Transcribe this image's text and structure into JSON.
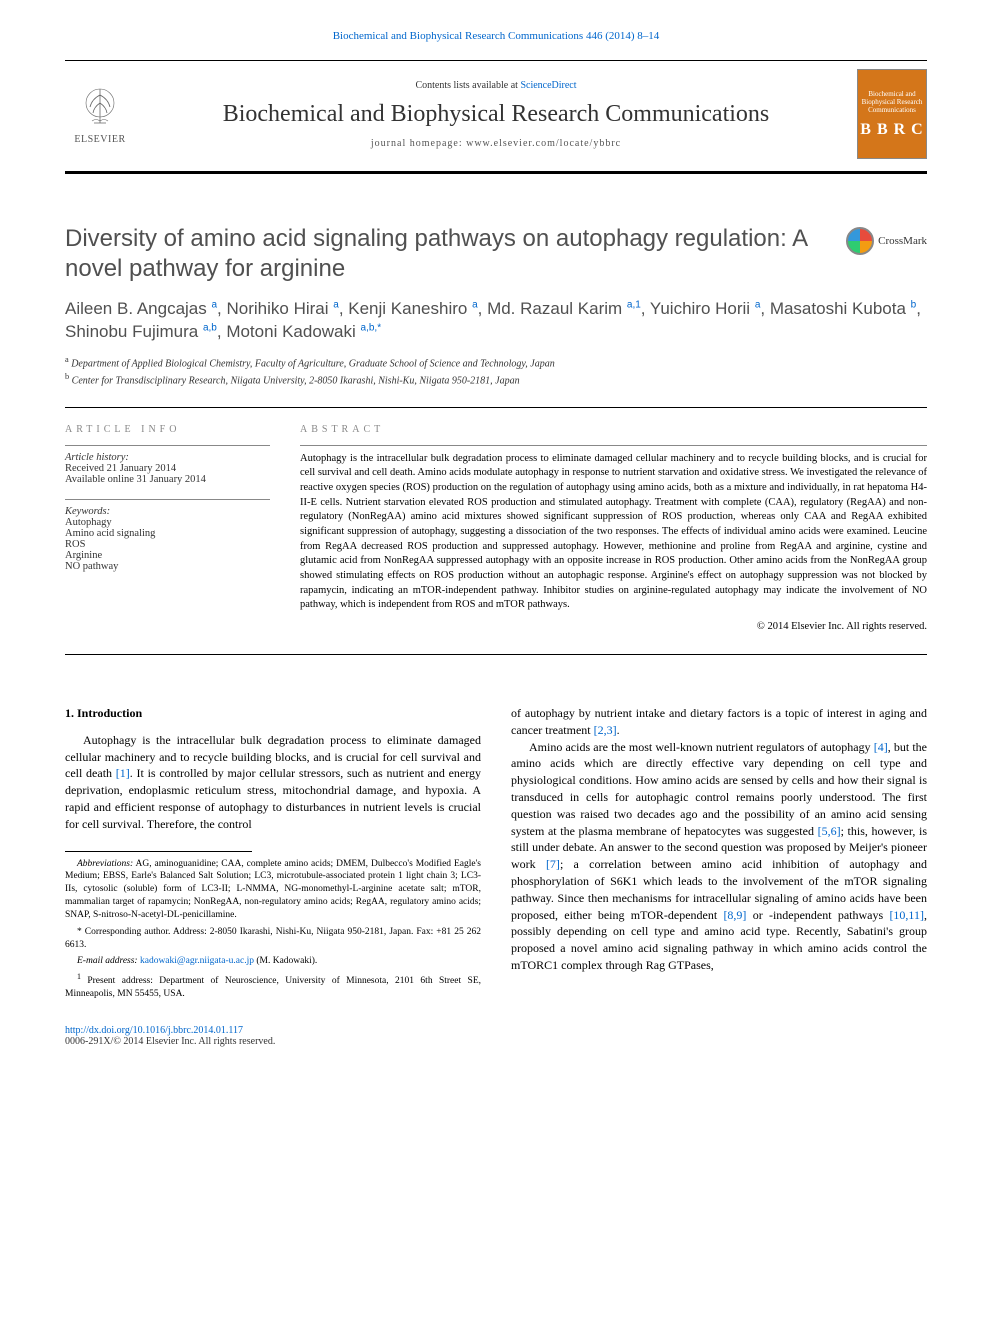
{
  "header": {
    "citation_link": "Biochemical and Biophysical Research Communications 446 (2014) 8–14",
    "contents_prefix": "Contents lists available at ",
    "contents_source": "ScienceDirect",
    "journal_title": "Biochemical and Biophysical Research Communications",
    "homepage_label": "journal homepage: ",
    "homepage_url": "www.elsevier.com/locate/ybbrc",
    "publisher": "ELSEVIER",
    "bbrc_top": "Biochemical and Biophysical Research Communications",
    "bbrc_letters": "B B R C",
    "crossmark": "CrossMark"
  },
  "article": {
    "title": "Diversity of amino acid signaling pathways on autophagy regulation: A novel pathway for arginine",
    "authors_html": "Aileen B. Angcajas <sup>a</sup>, Norihiko Hirai <sup>a</sup>, Kenji Kaneshiro <sup>a</sup>, Md. Razaul Karim <sup>a,1</sup>, Yuichiro Horii <sup>a</sup>, Masatoshi Kubota <sup>b</sup>, Shinobu Fujimura <sup>a,b</sup>, Motoni Kadowaki <sup>a,b,*</sup>",
    "affiliations": {
      "a": "Department of Applied Biological Chemistry, Faculty of Agriculture, Graduate School of Science and Technology, Japan",
      "b": "Center for Transdisciplinary Research, Niigata University, 2-8050 Ikarashi, Nishi-Ku, Niigata 950-2181, Japan"
    }
  },
  "info": {
    "heading": "ARTICLE INFO",
    "history_label": "Article history:",
    "received": "Received 21 January 2014",
    "online": "Available online 31 January 2014",
    "keywords_label": "Keywords:",
    "keywords": [
      "Autophagy",
      "Amino acid signaling",
      "ROS",
      "Arginine",
      "NO pathway"
    ]
  },
  "abstract": {
    "heading": "ABSTRACT",
    "text": "Autophagy is the intracellular bulk degradation process to eliminate damaged cellular machinery and to recycle building blocks, and is crucial for cell survival and cell death. Amino acids modulate autophagy in response to nutrient starvation and oxidative stress. We investigated the relevance of reactive oxygen species (ROS) production on the regulation of autophagy using amino acids, both as a mixture and individually, in rat hepatoma H4-II-E cells. Nutrient starvation elevated ROS production and stimulated autophagy. Treatment with complete (CAA), regulatory (RegAA) and non-regulatory (NonRegAA) amino acid mixtures showed significant suppression of ROS production, whereas only CAA and RegAA exhibited significant suppression of autophagy, suggesting a dissociation of the two responses. The effects of individual amino acids were examined. Leucine from RegAA decreased ROS production and suppressed autophagy. However, methionine and proline from RegAA and arginine, cystine and glutamic acid from NonRegAA suppressed autophagy with an opposite increase in ROS production. Other amino acids from the NonRegAA group showed stimulating effects on ROS production without an autophagic response. Arginine's effect on autophagy suppression was not blocked by rapamycin, indicating an mTOR-independent pathway. Inhibitor studies on arginine-regulated autophagy may indicate the involvement of NO pathway, which is independent from ROS and mTOR pathways.",
    "copyright": "© 2014 Elsevier Inc. All rights reserved."
  },
  "body": {
    "section_heading": "1. Introduction",
    "left_para": "Autophagy is the intracellular bulk degradation process to eliminate damaged cellular machinery and to recycle building blocks, and is crucial for cell survival and cell death [1]. It is controlled by major cellular stressors, such as nutrient and energy deprivation, endoplasmic reticulum stress, mitochondrial damage, and hypoxia. A rapid and efficient response of autophagy to disturbances in nutrient levels is crucial for cell survival. Therefore, the control",
    "right_para1": "of autophagy by nutrient intake and dietary factors is a topic of interest in aging and cancer treatment [2,3].",
    "right_para2": "Amino acids are the most well-known nutrient regulators of autophagy [4], but the amino acids which are directly effective vary depending on cell type and physiological conditions. How amino acids are sensed by cells and how their signal is transduced in cells for autophagic control remains poorly understood. The first question was raised two decades ago and the possibility of an amino acid sensing system at the plasma membrane of hepatocytes was suggested [5,6]; this, however, is still under debate. An answer to the second question was proposed by Meijer's pioneer work [7]; a correlation between amino acid inhibition of autophagy and phosphorylation of S6K1 which leads to the involvement of the mTOR signaling pathway. Since then mechanisms for intracellular signaling of amino acids have been proposed, either being mTOR-dependent [8,9] or -independent pathways [10,11], possibly depending on cell type and amino acid type. Recently, Sabatini's group proposed a novel amino acid signaling pathway in which amino acids control the mTORC1 complex through Rag GTPases,"
  },
  "footnotes": {
    "abbrev_label": "Abbreviations:",
    "abbrev_text": "AG, aminoguanidine; CAA, complete amino acids; DMEM, Dulbecco's Modified Eagle's Medium; EBSS, Earle's Balanced Salt Solution; LC3, microtubule-associated protein 1 light chain 3; LC3-IIs, cytosolic (soluble) form of LC3-II; L-NMMA, NG-monomethyl-L-arginine acetate salt; mTOR, mammalian target of rapamycin; NonRegAA, non-regulatory amino acids; RegAA, regulatory amino acids; SNAP, S-nitroso-N-acetyl-DL-penicillamine.",
    "corresponding": "* Corresponding author. Address: 2-8050 Ikarashi, Nishi-Ku, Niigata 950-2181, Japan. Fax: +81 25 262 6613.",
    "email_label": "E-mail address:",
    "email": "kadowaki@agr.niigata-u.ac.jp",
    "email_who": "(M. Kadowaki).",
    "present_addr": "Present address: Department of Neuroscience, University of Minnesota, 2101 6th Street SE, Minneapolis, MN 55455, USA."
  },
  "footer": {
    "doi": "http://dx.doi.org/10.1016/j.bbrc.2014.01.117",
    "issn_line": "0006-291X/© 2014 Elsevier Inc. All rights reserved."
  },
  "colors": {
    "link": "#0066cc",
    "heading_gray": "#888888",
    "body_text": "#000000",
    "title_gray": "#505050",
    "bbrc_bg": "#d4761a"
  }
}
